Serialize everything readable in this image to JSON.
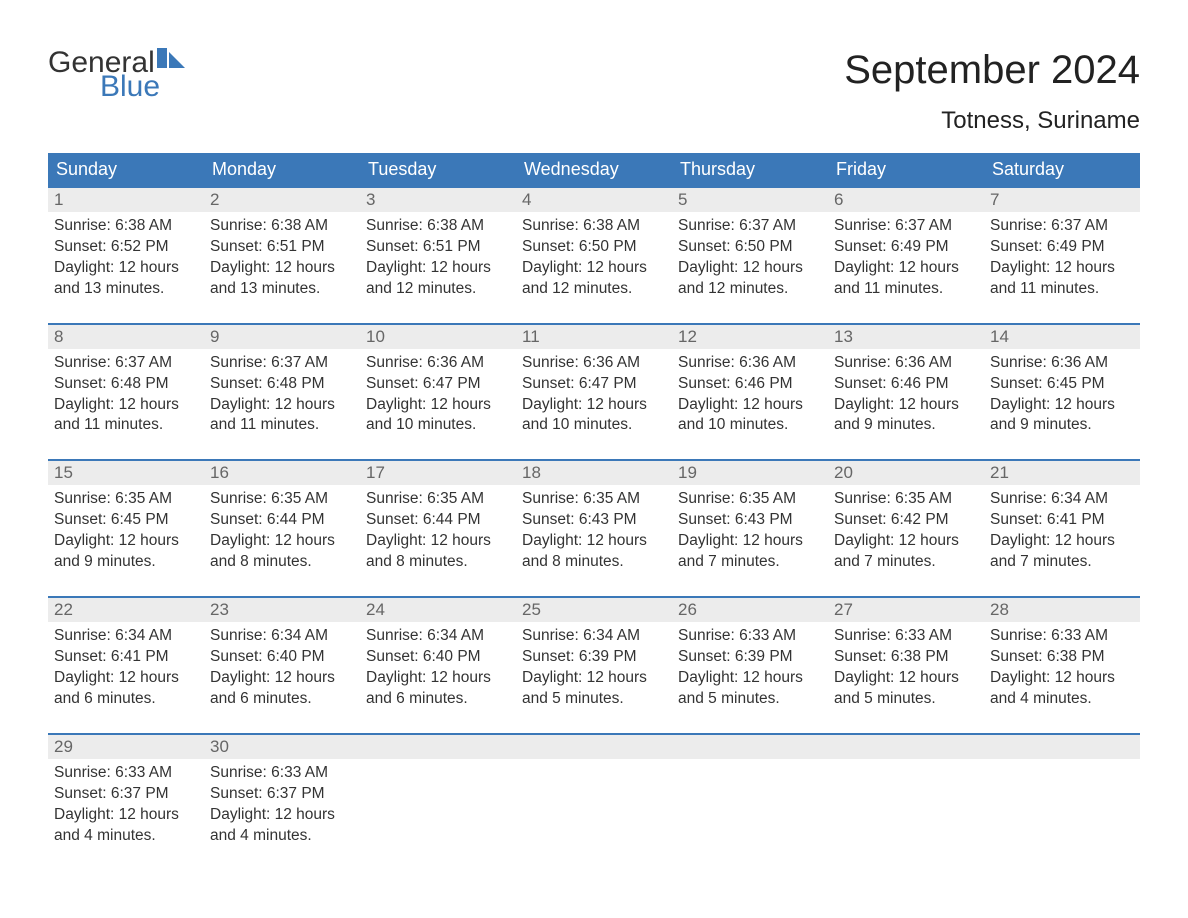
{
  "logo": {
    "text_top": "General",
    "text_bottom": "Blue",
    "flag_color": "#3b78b8",
    "text_color_top": "#333333",
    "text_color_bottom": "#3b78b8"
  },
  "title": "September 2024",
  "location": "Totness, Suriname",
  "colors": {
    "header_bg": "#3b78b8",
    "header_text": "#ffffff",
    "row_accent": "#3b78b8",
    "daynum_bg": "#ececec",
    "daynum_text": "#666666",
    "body_text": "#333333",
    "background": "#ffffff"
  },
  "fonts": {
    "title_size_pt": 30,
    "location_size_pt": 18,
    "dayhead_size_pt": 14,
    "daynum_size_pt": 13,
    "body_size_pt": 12
  },
  "day_headers": [
    "Sunday",
    "Monday",
    "Tuesday",
    "Wednesday",
    "Thursday",
    "Friday",
    "Saturday"
  ],
  "weeks": [
    [
      {
        "n": "1",
        "sunrise": "6:38 AM",
        "sunset": "6:52 PM",
        "daylight": "12 hours and 13 minutes."
      },
      {
        "n": "2",
        "sunrise": "6:38 AM",
        "sunset": "6:51 PM",
        "daylight": "12 hours and 13 minutes."
      },
      {
        "n": "3",
        "sunrise": "6:38 AM",
        "sunset": "6:51 PM",
        "daylight": "12 hours and 12 minutes."
      },
      {
        "n": "4",
        "sunrise": "6:38 AM",
        "sunset": "6:50 PM",
        "daylight": "12 hours and 12 minutes."
      },
      {
        "n": "5",
        "sunrise": "6:37 AM",
        "sunset": "6:50 PM",
        "daylight": "12 hours and 12 minutes."
      },
      {
        "n": "6",
        "sunrise": "6:37 AM",
        "sunset": "6:49 PM",
        "daylight": "12 hours and 11 minutes."
      },
      {
        "n": "7",
        "sunrise": "6:37 AM",
        "sunset": "6:49 PM",
        "daylight": "12 hours and 11 minutes."
      }
    ],
    [
      {
        "n": "8",
        "sunrise": "6:37 AM",
        "sunset": "6:48 PM",
        "daylight": "12 hours and 11 minutes."
      },
      {
        "n": "9",
        "sunrise": "6:37 AM",
        "sunset": "6:48 PM",
        "daylight": "12 hours and 11 minutes."
      },
      {
        "n": "10",
        "sunrise": "6:36 AM",
        "sunset": "6:47 PM",
        "daylight": "12 hours and 10 minutes."
      },
      {
        "n": "11",
        "sunrise": "6:36 AM",
        "sunset": "6:47 PM",
        "daylight": "12 hours and 10 minutes."
      },
      {
        "n": "12",
        "sunrise": "6:36 AM",
        "sunset": "6:46 PM",
        "daylight": "12 hours and 10 minutes."
      },
      {
        "n": "13",
        "sunrise": "6:36 AM",
        "sunset": "6:46 PM",
        "daylight": "12 hours and 9 minutes."
      },
      {
        "n": "14",
        "sunrise": "6:36 AM",
        "sunset": "6:45 PM",
        "daylight": "12 hours and 9 minutes."
      }
    ],
    [
      {
        "n": "15",
        "sunrise": "6:35 AM",
        "sunset": "6:45 PM",
        "daylight": "12 hours and 9 minutes."
      },
      {
        "n": "16",
        "sunrise": "6:35 AM",
        "sunset": "6:44 PM",
        "daylight": "12 hours and 8 minutes."
      },
      {
        "n": "17",
        "sunrise": "6:35 AM",
        "sunset": "6:44 PM",
        "daylight": "12 hours and 8 minutes."
      },
      {
        "n": "18",
        "sunrise": "6:35 AM",
        "sunset": "6:43 PM",
        "daylight": "12 hours and 8 minutes."
      },
      {
        "n": "19",
        "sunrise": "6:35 AM",
        "sunset": "6:43 PM",
        "daylight": "12 hours and 7 minutes."
      },
      {
        "n": "20",
        "sunrise": "6:35 AM",
        "sunset": "6:42 PM",
        "daylight": "12 hours and 7 minutes."
      },
      {
        "n": "21",
        "sunrise": "6:34 AM",
        "sunset": "6:41 PM",
        "daylight": "12 hours and 7 minutes."
      }
    ],
    [
      {
        "n": "22",
        "sunrise": "6:34 AM",
        "sunset": "6:41 PM",
        "daylight": "12 hours and 6 minutes."
      },
      {
        "n": "23",
        "sunrise": "6:34 AM",
        "sunset": "6:40 PM",
        "daylight": "12 hours and 6 minutes."
      },
      {
        "n": "24",
        "sunrise": "6:34 AM",
        "sunset": "6:40 PM",
        "daylight": "12 hours and 6 minutes."
      },
      {
        "n": "25",
        "sunrise": "6:34 AM",
        "sunset": "6:39 PM",
        "daylight": "12 hours and 5 minutes."
      },
      {
        "n": "26",
        "sunrise": "6:33 AM",
        "sunset": "6:39 PM",
        "daylight": "12 hours and 5 minutes."
      },
      {
        "n": "27",
        "sunrise": "6:33 AM",
        "sunset": "6:38 PM",
        "daylight": "12 hours and 5 minutes."
      },
      {
        "n": "28",
        "sunrise": "6:33 AM",
        "sunset": "6:38 PM",
        "daylight": "12 hours and 4 minutes."
      }
    ],
    [
      {
        "n": "29",
        "sunrise": "6:33 AM",
        "sunset": "6:37 PM",
        "daylight": "12 hours and 4 minutes."
      },
      {
        "n": "30",
        "sunrise": "6:33 AM",
        "sunset": "6:37 PM",
        "daylight": "12 hours and 4 minutes."
      },
      null,
      null,
      null,
      null,
      null
    ]
  ],
  "labels": {
    "sunrise": "Sunrise:",
    "sunset": "Sunset:",
    "daylight": "Daylight:"
  }
}
